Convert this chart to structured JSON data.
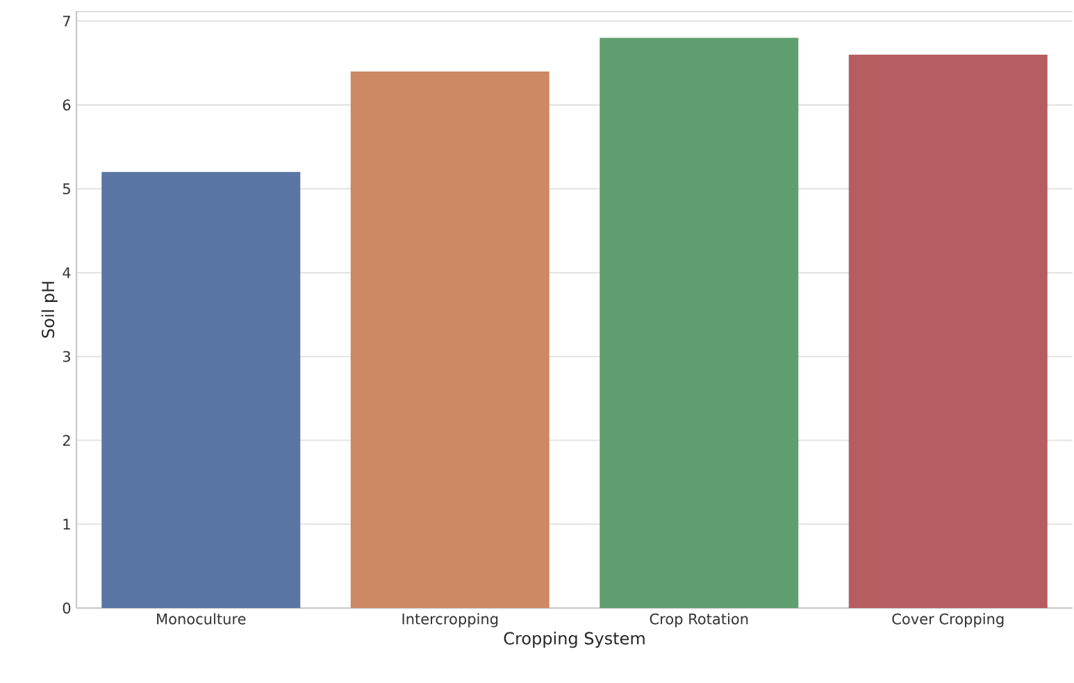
{
  "chart_data": {
    "type": "bar",
    "xlabel": "Cropping System",
    "ylabel": "Soil pH",
    "categories": [
      "Monoculture",
      "Intercropping",
      "Crop Rotation",
      "Cover Cropping"
    ],
    "values": [
      5.2,
      6.4,
      6.8,
      6.6
    ],
    "colors": [
      "#5875a4",
      "#cc8963",
      "#5f9e6e",
      "#b55d60"
    ],
    "ylim": [
      0,
      7.12
    ],
    "yticks": [
      0,
      1,
      2,
      3,
      4,
      5,
      6,
      7
    ],
    "grid": "y"
  }
}
